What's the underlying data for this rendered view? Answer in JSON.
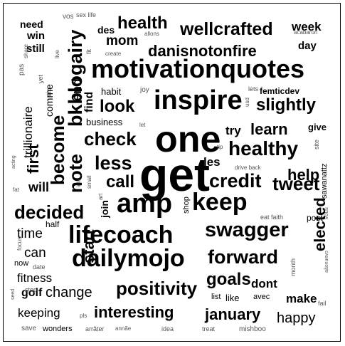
{
  "colors": {
    "background": "#ffffff",
    "text": "#000000",
    "light_text": "#555555"
  },
  "words": [
    {
      "t": "need",
      "s": 14
    },
    {
      "t": "vos",
      "s": 10
    },
    {
      "t": "sex life",
      "s": 9
    },
    {
      "t": "health",
      "s": 24
    },
    {
      "t": "wellcrafted",
      "s": 25
    },
    {
      "t": "week",
      "s": 17
    },
    {
      "t": "win",
      "s": 15
    },
    {
      "t": "des",
      "s": 14
    },
    {
      "t": "allons",
      "s": 8
    },
    {
      "t": "share",
      "s": 8
    },
    {
      "t": "still",
      "s": 15
    },
    {
      "t": "fit",
      "s": 9
    },
    {
      "t": "mom",
      "s": 19
    },
    {
      "t": "danisnotonfire",
      "s": 22
    },
    {
      "t": "day",
      "s": 15
    },
    {
      "t": "acabaron",
      "s": 8
    },
    {
      "t": "pas",
      "s": 10
    },
    {
      "t": "live",
      "s": 8
    },
    {
      "t": "create",
      "s": 8
    },
    {
      "t": "bkblogairy",
      "s": 27
    },
    {
      "t": "motivationquotes",
      "s": 36
    },
    {
      "t": "yet",
      "s": 9
    },
    {
      "t": "via",
      "s": 10
    },
    {
      "t": "comme",
      "s": 14
    },
    {
      "t": "trillionaire",
      "s": 17
    },
    {
      "t": "end",
      "s": 18
    },
    {
      "t": "habit",
      "s": 13
    },
    {
      "t": "joy",
      "s": 10
    },
    {
      "t": "inspire",
      "s": 38
    },
    {
      "t": "lets",
      "s": 9
    },
    {
      "t": "femticdev",
      "s": 12
    },
    {
      "t": "find",
      "s": 16
    },
    {
      "t": "look",
      "s": 24
    },
    {
      "t": "usd",
      "s": 8
    },
    {
      "t": "slightly",
      "s": 24
    },
    {
      "t": "become",
      "s": 26
    },
    {
      "t": "business",
      "s": 13
    },
    {
      "t": "let",
      "s": 8
    },
    {
      "t": "one",
      "s": 52
    },
    {
      "t": "learn",
      "s": 22
    },
    {
      "t": "give",
      "s": 13
    },
    {
      "t": "check",
      "s": 26
    },
    {
      "t": "try",
      "s": 17
    },
    {
      "t": "first",
      "s": 22
    },
    {
      "t": "healthy",
      "s": 28
    },
    {
      "t": "site",
      "s": 9
    },
    {
      "t": "tip",
      "s": 8
    },
    {
      "t": "note",
      "s": 26
    },
    {
      "t": "less",
      "s": 27
    },
    {
      "t": "get",
      "s": 66
    },
    {
      "t": "les",
      "s": 17
    },
    {
      "t": "drive back",
      "s": 8
    },
    {
      "t": "sawanattz",
      "s": 11
    },
    {
      "t": "acting",
      "s": 7
    },
    {
      "t": "call",
      "s": 24
    },
    {
      "t": "credit",
      "s": 27
    },
    {
      "t": "help",
      "s": 22
    },
    {
      "t": "small",
      "s": 8
    },
    {
      "t": "will",
      "s": 18
    },
    {
      "t": "info",
      "s": 7
    },
    {
      "t": "art",
      "s": 8
    },
    {
      "t": "fat",
      "s": 8
    },
    {
      "t": "tweet",
      "s": 26
    },
    {
      "t": "amp",
      "s": 38
    },
    {
      "t": "keep",
      "s": 34
    },
    {
      "t": "join",
      "s": 14
    },
    {
      "t": "shop",
      "s": 11
    },
    {
      "t": "vous",
      "s": 8
    },
    {
      "t": "decided",
      "s": 26
    },
    {
      "t": "eat faith",
      "s": 9
    },
    {
      "t": "swagger",
      "s": 29
    },
    {
      "t": "post",
      "s": 12
    },
    {
      "t": "half",
      "s": 12
    },
    {
      "t": "time",
      "s": 19
    },
    {
      "t": "lifecoach",
      "s": 34
    },
    {
      "t": "start",
      "s": 22
    },
    {
      "t": "elected",
      "s": 22
    },
    {
      "t": "focus",
      "s": 8
    },
    {
      "t": "can",
      "s": 19
    },
    {
      "t": "aãonuevo",
      "s": 7
    },
    {
      "t": "dailymojo",
      "s": 34
    },
    {
      "t": "forward",
      "s": 27
    },
    {
      "t": "now",
      "s": 11
    },
    {
      "t": "date",
      "s": 9
    },
    {
      "t": "fitness",
      "s": 17
    },
    {
      "t": "month",
      "s": 9
    },
    {
      "t": "goals",
      "s": 24
    },
    {
      "t": "dont",
      "s": 17
    },
    {
      "t": "positivity",
      "s": 26
    },
    {
      "t": "golf",
      "s": 16
    },
    {
      "t": "stop",
      "s": 9
    },
    {
      "t": "change",
      "s": 20
    },
    {
      "t": "list",
      "s": 11
    },
    {
      "t": "like",
      "s": 13
    },
    {
      "t": "avec",
      "s": 11
    },
    {
      "t": "make",
      "s": 17
    },
    {
      "t": "seed",
      "s": 7
    },
    {
      "t": "fail",
      "s": 9
    },
    {
      "t": "keeping",
      "s": 17
    },
    {
      "t": "pls",
      "s": 8
    },
    {
      "t": "interesting",
      "s": 22
    },
    {
      "t": "january",
      "s": 22
    },
    {
      "t": "happy",
      "s": 20
    },
    {
      "t": "save",
      "s": 10
    },
    {
      "t": "wonders",
      "s": 11
    },
    {
      "t": "arrãter",
      "s": 9
    },
    {
      "t": "annãe",
      "s": 8
    },
    {
      "t": "idea",
      "s": 9
    },
    {
      "t": "treat",
      "s": 9
    },
    {
      "t": "mishboo",
      "s": 10
    }
  ]
}
